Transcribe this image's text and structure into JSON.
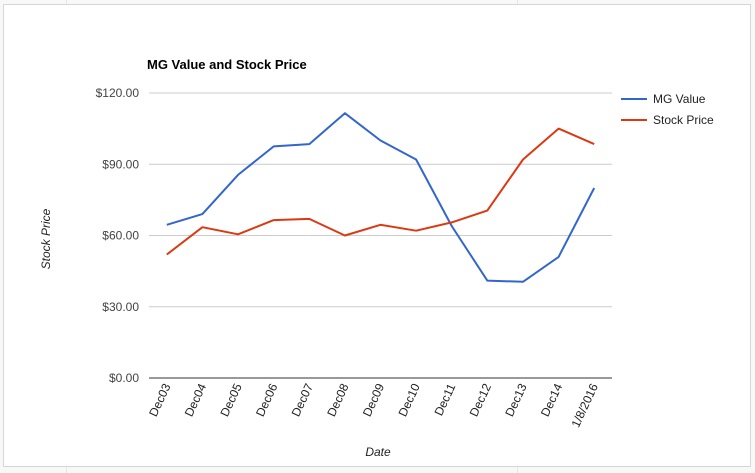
{
  "chart_data": {
    "type": "line",
    "title": "MG Value and Stock Price",
    "xlabel": "Date",
    "ylabel": "Stock Price",
    "categories": [
      "Dec03",
      "Dec04",
      "Dec05",
      "Dec06",
      "Dec07",
      "Dec08",
      "Dec09",
      "Dec10",
      "Dec11",
      "Dec12",
      "Dec13",
      "Dec14",
      "1/8/2016"
    ],
    "series": [
      {
        "name": "MG Value",
        "color": "#3366cc",
        "values": [
          64.5,
          69,
          85.5,
          97.5,
          98.5,
          111.5,
          100,
          92,
          64,
          41,
          40.5,
          51,
          80
        ]
      },
      {
        "name": "Stock Price",
        "color": "#dc3912",
        "values": [
          52,
          63.5,
          60.5,
          66.5,
          67,
          60,
          64.5,
          62,
          65.5,
          70.5,
          92,
          105,
          98.5
        ]
      }
    ],
    "yticks": [
      "$0.00",
      "$30.00",
      "$60.00",
      "$90.00",
      "$120.00"
    ],
    "ytick_values": [
      0,
      30,
      60,
      90,
      120
    ],
    "ylim": [
      0,
      120
    ],
    "grid": true,
    "legend_position": "right"
  }
}
